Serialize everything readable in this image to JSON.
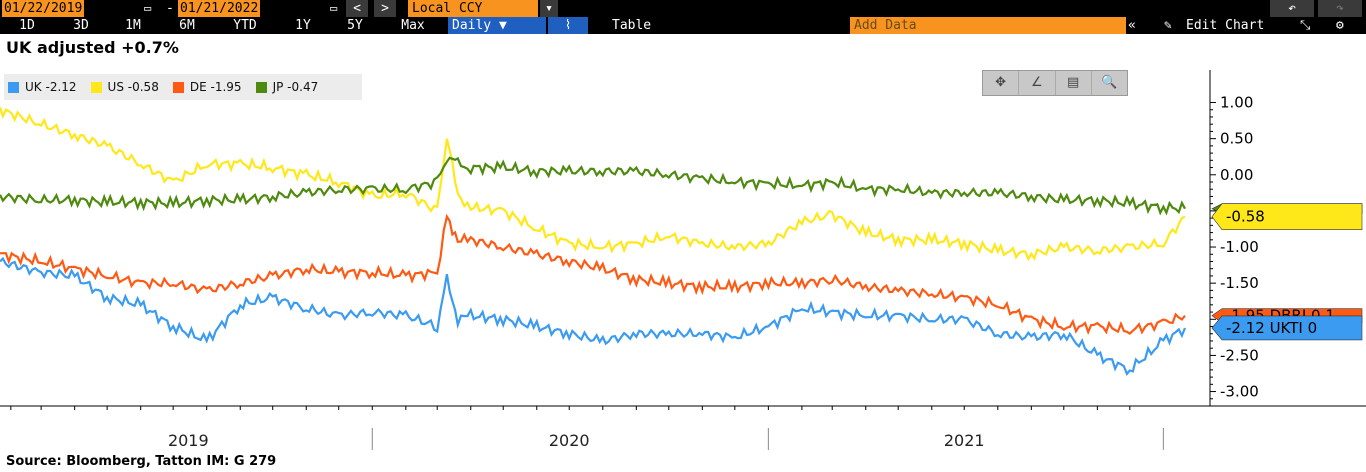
{
  "toolbar": {
    "start_date": "01/22/2019",
    "date_sep": "-",
    "end_date": "01/21/2022",
    "prev": "<",
    "next": ">",
    "currency": "Local CCY",
    "periods": [
      "1D",
      "3D",
      "1M",
      "6M",
      "YTD",
      "1Y",
      "5Y",
      "Max"
    ],
    "frequency": "Daily",
    "table_label": "Table",
    "add_data_placeholder": "Add Data",
    "edit_chart": "Edit Chart"
  },
  "source": "Source: Bloomberg, Tatton IM: G 279",
  "chart_data": {
    "type": "line",
    "title": "UK adjusted +0.7%",
    "x_labels": [
      "2019",
      "2020",
      "2021"
    ],
    "y_ticks": [
      "1.00",
      "0.50",
      "0.00",
      "-0.50",
      "-1.00",
      "-1.50",
      "-2.00",
      "-2.50",
      "-3.00"
    ],
    "y_tick_values": [
      1.0,
      0.5,
      0.0,
      -0.5,
      -1.0,
      -1.5,
      -2.0,
      -2.5,
      -3.0
    ],
    "ylim": [
      -3.2,
      1.45
    ],
    "xlim": [
      "2019-01-22",
      "2022-01-21"
    ],
    "grid": false,
    "legend_position": "top-left",
    "x": [
      "2019-01-22",
      "2019-03-01",
      "2019-04-01",
      "2019-05-01",
      "2019-06-01",
      "2019-07-01",
      "2019-08-01",
      "2019-09-01",
      "2019-10-01",
      "2019-11-01",
      "2019-12-01",
      "2020-01-01",
      "2020-02-01",
      "2020-03-01",
      "2020-03-10",
      "2020-03-20",
      "2020-04-01",
      "2020-05-01",
      "2020-06-01",
      "2020-07-01",
      "2020-08-01",
      "2020-09-01",
      "2020-10-01",
      "2020-11-01",
      "2020-12-01",
      "2021-01-01",
      "2021-02-01",
      "2021-03-01",
      "2021-04-01",
      "2021-05-01",
      "2021-06-01",
      "2021-07-01",
      "2021-08-01",
      "2021-09-01",
      "2021-10-01",
      "2021-11-01",
      "2021-12-01",
      "2022-01-01",
      "2022-01-21"
    ],
    "series": [
      {
        "name": "UK",
        "legend_value": "-2.12",
        "tag": "-2.12 UKTI 0",
        "color": "#3b9bf0",
        "values": [
          -1.2,
          -1.35,
          -1.4,
          -1.7,
          -1.8,
          -2.1,
          -2.3,
          -1.8,
          -1.7,
          -1.85,
          -1.95,
          -1.9,
          -1.95,
          -2.1,
          -1.45,
          -2.0,
          -1.95,
          -2.0,
          -2.1,
          -2.2,
          -2.3,
          -2.2,
          -2.2,
          -2.2,
          -2.25,
          -2.1,
          -1.85,
          -1.9,
          -1.95,
          -1.95,
          -2.0,
          -2.0,
          -2.2,
          -2.25,
          -2.2,
          -2.5,
          -2.7,
          -2.3,
          -2.12
        ]
      },
      {
        "name": "US",
        "legend_value": "-0.58",
        "tag": "-0.58",
        "color": "#ffe81a",
        "values": [
          0.9,
          0.7,
          0.55,
          0.4,
          0.15,
          -0.1,
          0.15,
          0.15,
          0.1,
          0.0,
          -0.1,
          -0.3,
          -0.25,
          -0.5,
          0.55,
          -0.3,
          -0.45,
          -0.5,
          -0.75,
          -0.95,
          -1.0,
          -0.95,
          -0.85,
          -0.95,
          -1.0,
          -0.95,
          -0.65,
          -0.55,
          -0.8,
          -0.9,
          -0.9,
          -0.95,
          -1.05,
          -1.1,
          -1.0,
          -1.05,
          -1.0,
          -0.95,
          -0.58
        ]
      },
      {
        "name": "DE",
        "legend_value": "-1.95",
        "tag": "-1.95 DBRI 0.1",
        "color": "#ff5a14",
        "values": [
          -1.1,
          -1.2,
          -1.3,
          -1.4,
          -1.5,
          -1.5,
          -1.6,
          -1.5,
          -1.4,
          -1.3,
          -1.35,
          -1.35,
          -1.4,
          -1.35,
          -0.6,
          -0.9,
          -0.9,
          -1.0,
          -1.1,
          -1.2,
          -1.3,
          -1.45,
          -1.5,
          -1.55,
          -1.55,
          -1.5,
          -1.5,
          -1.45,
          -1.55,
          -1.6,
          -1.65,
          -1.7,
          -1.8,
          -2.0,
          -2.1,
          -2.1,
          -2.15,
          -2.05,
          -1.95
        ]
      },
      {
        "name": "JP",
        "legend_value": "-0.47",
        "tag": "",
        "color": "#4e8a0e",
        "values": [
          -0.3,
          -0.35,
          -0.35,
          -0.38,
          -0.38,
          -0.4,
          -0.35,
          -0.35,
          -0.3,
          -0.25,
          -0.2,
          -0.2,
          -0.2,
          -0.1,
          0.25,
          0.15,
          0.1,
          0.1,
          0.05,
          0.05,
          0.05,
          0.05,
          0.0,
          -0.05,
          -0.1,
          -0.12,
          -0.15,
          -0.1,
          -0.2,
          -0.2,
          -0.25,
          -0.25,
          -0.25,
          -0.3,
          -0.35,
          -0.35,
          -0.4,
          -0.45,
          -0.47
        ]
      }
    ]
  },
  "tools": [
    "✥",
    "∠",
    "▤",
    "🔍"
  ]
}
